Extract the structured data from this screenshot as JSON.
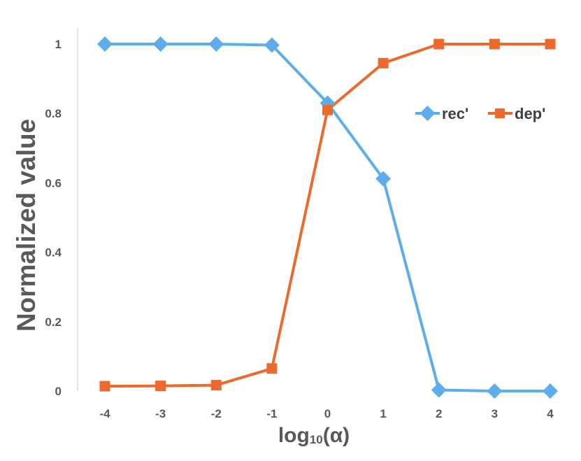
{
  "chart_data": {
    "type": "line",
    "x": [
      -4,
      -3,
      -2,
      -1,
      0,
      1,
      2,
      3,
      4
    ],
    "x_tick_labels": [
      "-4",
      "-3",
      "-2",
      "-1",
      "0",
      "1",
      "2",
      "3",
      "4"
    ],
    "y_tick_labels": [
      "0",
      "0.2",
      "0.4",
      "0.6",
      "0.8",
      "1"
    ],
    "y_ticks": [
      0,
      0.2,
      0.4,
      0.6,
      0.8,
      1
    ],
    "xlim": [
      -4,
      4
    ],
    "ylim": [
      0,
      1
    ],
    "ylabel": "Normalized value",
    "xlabel": {
      "prefix": "log",
      "subscript": "10",
      "suffix": "(α)"
    },
    "grid": false,
    "legend_position": "right-center",
    "series": [
      {
        "name": "rec'",
        "color": "#5DADEC",
        "marker": "diamond",
        "values": [
          1.0,
          1.0,
          1.0,
          0.997,
          0.83,
          0.612,
          0.003,
          0.0,
          0.0
        ]
      },
      {
        "name": "dep'",
        "color": "#ED6A2F",
        "marker": "square",
        "values": [
          0.014,
          0.015,
          0.017,
          0.065,
          0.81,
          0.945,
          1.0,
          1.0,
          1.0
        ]
      }
    ]
  }
}
